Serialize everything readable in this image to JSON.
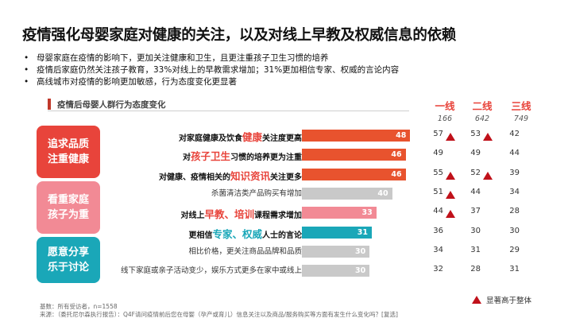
{
  "title": "疫情强化母婴家庭对健康的关注，以及对线上早教及权威信息的依赖",
  "bullets": [
    "母婴家庭在疫情的影响下，更加关注健康和卫生，且更注重孩子卫生习惯的培养",
    "疫情后家庭仍然关注孩子教育，33%对线上的早教需求增加；31%更加相信专家、权威的言论内容",
    "高线城市对疫情的影响更加敏感，行为态度变化更显著"
  ],
  "section_label": "疫情后母婴人群行为态度变化",
  "columns": [
    {
      "name": "一线",
      "base": "166"
    },
    {
      "name": "二线",
      "base": "642"
    },
    {
      "name": "三线",
      "base": "749"
    }
  ],
  "groups": [
    {
      "label_line1": "追求品质",
      "label_line2": "注重健康",
      "color": "#e8443b"
    },
    {
      "label_line1": "看重家庭",
      "label_line2": "孩子为重",
      "color": "#f28a95"
    },
    {
      "label_line1": "愿意分享",
      "label_line2": "乐于讨论",
      "color": "#1aa7b8"
    }
  ],
  "rows": [
    {
      "pre": "对家庭健康及饮食",
      "hl": "健康",
      "post": "关注度更高",
      "style": "red",
      "value": 48,
      "color": "#e8532e",
      "cells": [
        "57",
        "53",
        "42"
      ],
      "tri": [
        true,
        true,
        false
      ]
    },
    {
      "pre": "对",
      "hl": "孩子卫生",
      "post": "习惯的培养更为注重",
      "style": "red",
      "value": 46,
      "color": "#e8532e",
      "cells": [
        "49",
        "49",
        "44"
      ],
      "tri": [
        false,
        false,
        false
      ]
    },
    {
      "pre": "对健康、疫情相关的",
      "hl": "知识资讯",
      "post": "关注更多",
      "style": "red",
      "value": 46,
      "color": "#e8532e",
      "cells": [
        "55",
        "52",
        "39"
      ],
      "tri": [
        true,
        true,
        false
      ]
    },
    {
      "pre": "杀菌清洁类产品购买有增加",
      "hl": "",
      "post": "",
      "style": "plain",
      "value": 40,
      "color": "#c9c9c9",
      "cells": [
        "51",
        "44",
        "34"
      ],
      "tri": [
        true,
        false,
        false
      ]
    },
    {
      "pre": "对线上",
      "hl": "早教、培训",
      "post": "课程需求增加",
      "style": "pink",
      "value": 33,
      "color": "#f28a95",
      "cells": [
        "44",
        "37",
        "28"
      ],
      "tri": [
        true,
        false,
        false
      ]
    },
    {
      "pre": "更相信",
      "hl": "专家、权威",
      "post": "人士的言论",
      "style": "teal",
      "value": 31,
      "color": "#1aa7b8",
      "cells": [
        "36",
        "30",
        "30"
      ],
      "tri": [
        false,
        false,
        false
      ]
    },
    {
      "pre": "相比价格，更关注商品品牌和品质",
      "hl": "",
      "post": "",
      "style": "plain",
      "value": 30,
      "color": "#c9c9c9",
      "cells": [
        "34",
        "31",
        "29"
      ],
      "tri": [
        false,
        false,
        false
      ]
    },
    {
      "pre": "线下家庭或亲子活动变少，娱乐方式更多在家中或线上",
      "hl": "",
      "post": "",
      "style": "plain",
      "value": 30,
      "color": "#c9c9c9",
      "cells": [
        "32",
        "28",
        "31"
      ],
      "tri": [
        false,
        false,
        false
      ]
    }
  ],
  "legend_text": "显著高于整体",
  "footnotes": [
    "基数：所有受访者，n=1558",
    "来源：（委托尼尔森执行报告）：Q4F请问疫情前后您在母婴（孕产或育儿）信息关注以及商品/服务购买等方面有发生什么变化吗？[复选]"
  ],
  "chart_data": {
    "type": "bar",
    "title": "疫情后母婴人群行为态度变化",
    "categories": [
      "对家庭健康及饮食健康关注度更高",
      "对孩子卫生习惯的培养更为注重",
      "对健康、疫情相关的知识资讯关注更多",
      "杀菌清洁类产品购买有增加",
      "对线上早教、培训课程需求增加",
      "更相信专家、权威人士的言论",
      "相比价格，更关注商品品牌和品质",
      "线下家庭或亲子活动变少，娱乐方式更多在家中或线上"
    ],
    "values": [
      48,
      46,
      46,
      40,
      33,
      31,
      30,
      30
    ],
    "table_columns": [
      "一线",
      "二线",
      "三线"
    ],
    "table_values": [
      [
        57,
        53,
        42
      ],
      [
        49,
        49,
        44
      ],
      [
        55,
        52,
        39
      ],
      [
        51,
        44,
        34
      ],
      [
        44,
        37,
        28
      ],
      [
        36,
        30,
        30
      ],
      [
        34,
        31,
        29
      ],
      [
        32,
        28,
        31
      ]
    ]
  }
}
